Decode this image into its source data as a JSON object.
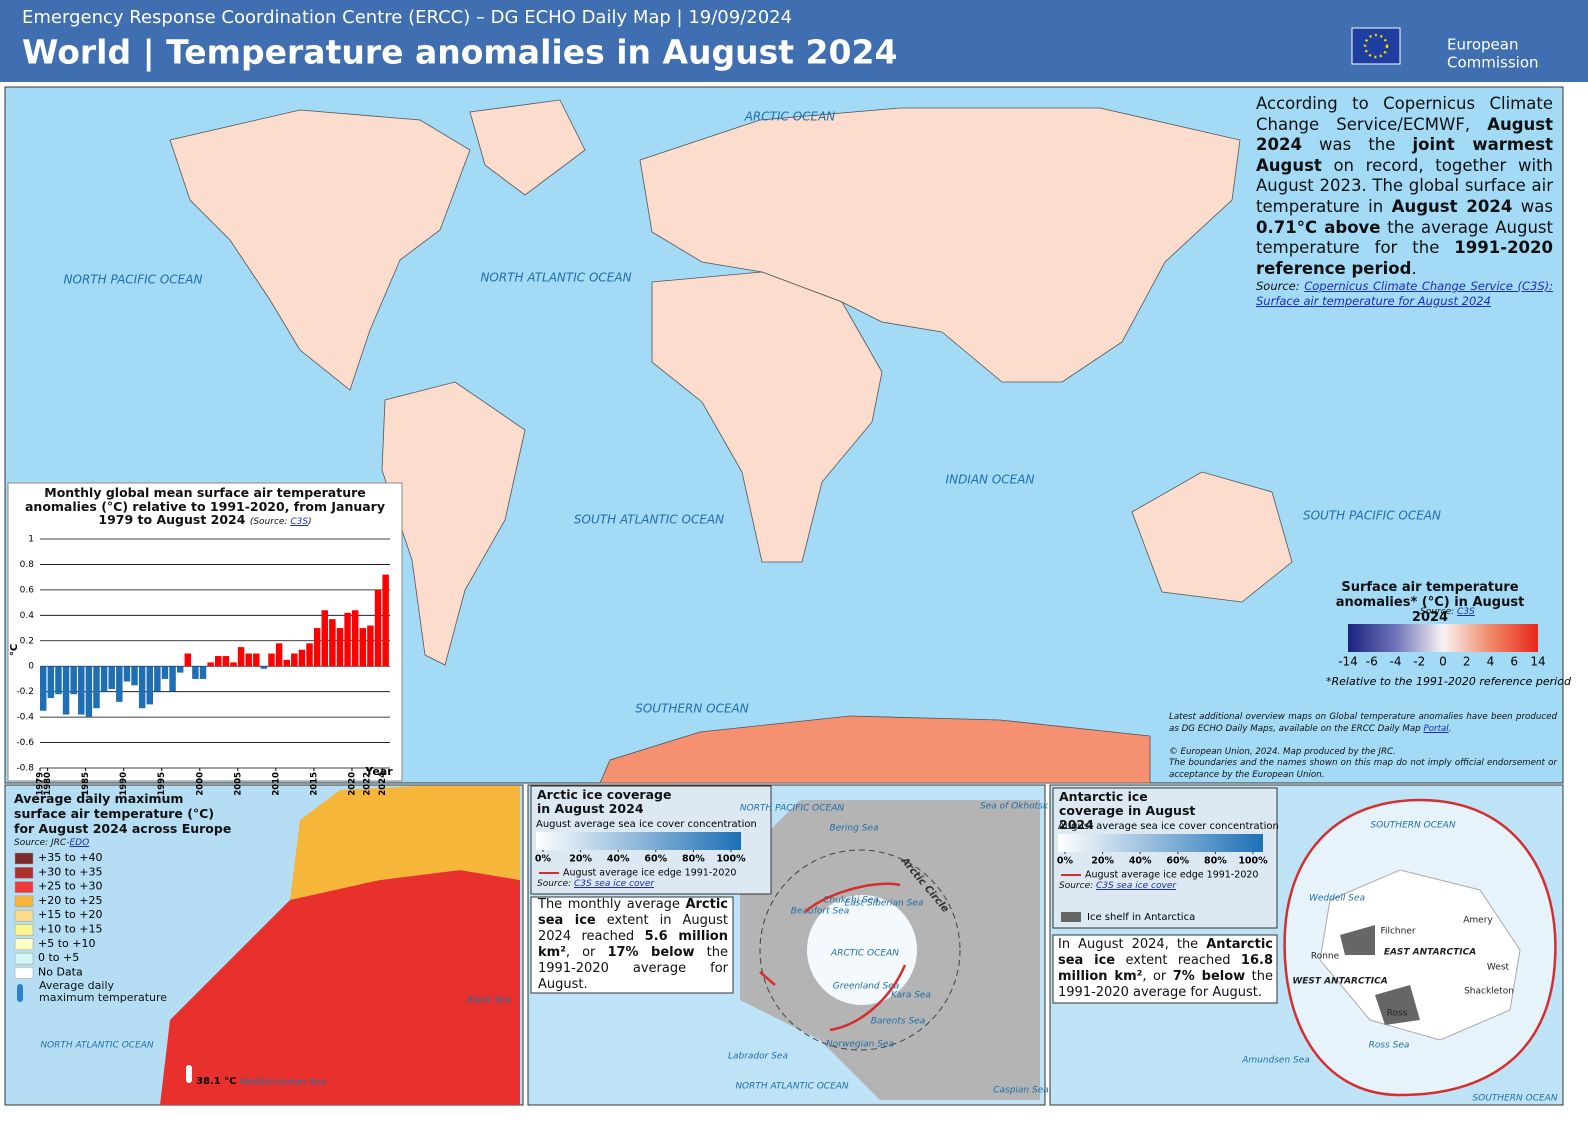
{
  "header": {
    "subtitle": "Emergency Response Coordination Centre (ERCC) – DG ECHO Daily Map | 19/09/2024",
    "title": "World | Temperature anomalies in August 2024",
    "logo": [
      "European",
      "Commission"
    ]
  },
  "map": {
    "ocean_labels": [
      "ARCTIC OCEAN",
      "NORTH PACIFIC OCEAN",
      "NORTH ATLANTIC OCEAN",
      "SOUTH ATLANTIC OCEAN",
      "INDIAN OCEAN",
      "SOUTH PACIFIC OCEAN",
      "SOUTHERN OCEAN"
    ]
  },
  "summary": {
    "segments": [
      {
        "text": "According to Copernicus Climate Change Service/ECMWF, ",
        "bold": false
      },
      {
        "text": "August 2024",
        "bold": true
      },
      {
        "text": " was the ",
        "bold": false
      },
      {
        "text": "joint warmest August",
        "bold": true
      },
      {
        "text": " on record, together with August 2023. The global surface air temperature in ",
        "bold": false
      },
      {
        "text": "August 2024",
        "bold": true
      },
      {
        "text": " was ",
        "bold": false
      },
      {
        "text": "0.71°C above",
        "bold": true
      },
      {
        "text": " the average August temperature for the ",
        "bold": false
      },
      {
        "text": "1991-2020 reference period",
        "bold": true
      },
      {
        "text": ".",
        "bold": false
      }
    ],
    "source_label": "Source:",
    "source_link": "Copernicus Climate Change Service (C3S): Surface air temperature for August 2024"
  },
  "legend": {
    "title": "Surface air temperature anomalies* (°C) in August 2024",
    "source_label": "Source:",
    "source_link": "C3S",
    "ticks": [
      -14,
      -6,
      -4,
      -2,
      0,
      2,
      4,
      6,
      14
    ],
    "colors": [
      "#1a237e",
      "#6f73b8",
      "#f7f3f3",
      "#f08a6a",
      "#e8261b"
    ],
    "footnote": "*Relative to the 1991-2020 reference period"
  },
  "notes": {
    "portal_prefix": "Latest additional overview maps on Global temperature anomalies have been produced as DG ECHO Daily Maps, available on the ERCC Daily Map ",
    "portal_link": "Portal",
    "portal_suffix": ".",
    "copyright": "© European Union, 2024. Map produced by the JRC.",
    "disclaimer": "The boundaries and the names shown on this map do not imply official endorsement or acceptance by the European Union."
  },
  "chart_data": {
    "type": "bar",
    "title": "Monthly global mean surface air temperature anomalies (°C) relative to 1991-2020, from January 1979 to August 2024",
    "source_prefix": "(Source: ",
    "source_link": "C3S",
    "source_suffix": ")",
    "y_label": "°C",
    "x_label": "Year",
    "x": [
      1979,
      1980,
      1981,
      1982,
      1983,
      1984,
      1985,
      1986,
      1987,
      1988,
      1989,
      1990,
      1991,
      1992,
      1993,
      1994,
      1995,
      1996,
      1997,
      1998,
      1999,
      2000,
      2001,
      2002,
      2003,
      2004,
      2005,
      2006,
      2007,
      2008,
      2009,
      2010,
      2011,
      2012,
      2013,
      2014,
      2015,
      2016,
      2017,
      2018,
      2019,
      2020,
      2021,
      2022,
      2023,
      2024
    ],
    "values": [
      -0.35,
      -0.25,
      -0.22,
      -0.38,
      -0.22,
      -0.38,
      -0.4,
      -0.33,
      -0.2,
      -0.18,
      -0.28,
      -0.12,
      -0.15,
      -0.33,
      -0.3,
      -0.2,
      -0.1,
      -0.2,
      -0.05,
      0.1,
      -0.1,
      -0.1,
      0.03,
      0.08,
      0.08,
      0.03,
      0.15,
      0.1,
      0.1,
      -0.02,
      0.1,
      0.18,
      0.05,
      0.1,
      0.13,
      0.18,
      0.3,
      0.44,
      0.37,
      0.3,
      0.42,
      0.44,
      0.3,
      0.32,
      0.6,
      0.72
    ],
    "positive_color": "#ff0000",
    "negative_color": "#1f6fb5",
    "ylim": [
      -0.8,
      1
    ],
    "yticks": [
      1,
      0.8,
      0.6,
      0.4,
      0.2,
      0,
      -0.2,
      -0.4,
      -0.6,
      -0.8
    ],
    "xlim": [
      1979,
      2025
    ],
    "xticks": [
      1979,
      1980,
      1985,
      1990,
      1995,
      2000,
      2005,
      2010,
      2015,
      2020,
      2022,
      2024
    ],
    "grid": true
  },
  "europe": {
    "title": "Average daily maximum surface air temperature (°C) for August 2024 across Europe",
    "source_label": "Source: JRC-",
    "source_link": "EDO",
    "legend": [
      {
        "label": "+35 to +40",
        "color": "#7b2b2b"
      },
      {
        "label": "+30 to +35",
        "color": "#b03030"
      },
      {
        "label": "+25 to +30",
        "color": "#f03a3a"
      },
      {
        "label": "+20 to +25",
        "color": "#f5b63a"
      },
      {
        "label": "+15 to +20",
        "color": "#fadc8c"
      },
      {
        "label": "+10 to +15",
        "color": "#fdf68f"
      },
      {
        "label": "+5 to +10",
        "color": "#ffffc0"
      },
      {
        "label": "0 to +5",
        "color": "#d6f5f5"
      },
      {
        "label": "No Data",
        "color": "#ffffff"
      }
    ],
    "max_label": "Average daily maximum temperature",
    "max_value": "38.1 °C",
    "sea_labels": [
      "NORTH ATLANTIC OCEAN",
      "Mediterranean Sea",
      "Black Sea"
    ]
  },
  "arctic": {
    "title": "Arctic ice coverage in August 2024",
    "scale_title": "August average sea ice cover concentration",
    "scale_ticks": [
      {
        "value": 0,
        "label": "0%"
      },
      {
        "value": 20,
        "label": "20%"
      },
      {
        "value": 40,
        "label": "40%"
      },
      {
        "value": 60,
        "label": "60%"
      },
      {
        "value": 80,
        "label": "80%"
      },
      {
        "value": 100,
        "label": "100%"
      }
    ],
    "edge_label": "August average ice edge 1991-2020",
    "source_label": "Source: ",
    "source_link": "C3S sea ice cover",
    "segments": [
      {
        "text": "The monthly average ",
        "bold": false
      },
      {
        "text": "Arctic sea ice",
        "bold": true
      },
      {
        "text": " extent in August 2024 reached ",
        "bold": false
      },
      {
        "text": "5.6 million km²",
        "bold": true
      },
      {
        "text": ", or ",
        "bold": false
      },
      {
        "text": "17% below",
        "bold": true
      },
      {
        "text": " the 1991-2020 average for August.",
        "bold": false
      }
    ],
    "place_labels": [
      "NORTH PACIFIC OCEAN",
      "Bering Sea",
      "Sea of Okhotsk",
      "Beaufort Sea",
      "Chukchi Sea",
      "East Siberian Sea",
      "ARCTIC OCEAN",
      "Arctic Circle",
      "Greenland Sea",
      "Kara Sea",
      "Barents Sea",
      "Norwegian Sea",
      "Labrador Sea",
      "NORTH ATLANTIC OCEAN",
      "Caspian Sea"
    ]
  },
  "antarctic": {
    "title": "Antarctic ice coverage in August 2024",
    "scale_title": "August average sea ice cover concentration",
    "scale_ticks": [
      {
        "value": 0,
        "label": "0%"
      },
      {
        "value": 20,
        "label": "20%"
      },
      {
        "value": 40,
        "label": "40%"
      },
      {
        "value": 60,
        "label": "60%"
      },
      {
        "value": 80,
        "label": "80%"
      },
      {
        "value": 100,
        "label": "100%"
      }
    ],
    "edge_label": "August average ice edge 1991-2020",
    "source_label": "Source: ",
    "source_link": "C3S sea ice cover",
    "shelf_label": "Ice shelf in Antarctica",
    "segments": [
      {
        "text": "In August 2024, the ",
        "bold": false
      },
      {
        "text": "Antarctic sea ice",
        "bold": true
      },
      {
        "text": " extent reached ",
        "bold": false
      },
      {
        "text": "16.8 million km²",
        "bold": true
      },
      {
        "text": ", or ",
        "bold": false
      },
      {
        "text": "7% below",
        "bold": true
      },
      {
        "text": " the 1991-2020 average for August.",
        "bold": false
      }
    ],
    "place_labels": [
      "SOUTHERN OCEAN",
      "Weddell Sea",
      "Filchner",
      "Ronne",
      "EAST ANTARCTICA",
      "WEST ANTARCTICA",
      "Amery",
      "West",
      "Shackleton",
      "Ross",
      "Ross Sea",
      "Amundsen Sea",
      "SOUTHERN OCEAN"
    ]
  }
}
